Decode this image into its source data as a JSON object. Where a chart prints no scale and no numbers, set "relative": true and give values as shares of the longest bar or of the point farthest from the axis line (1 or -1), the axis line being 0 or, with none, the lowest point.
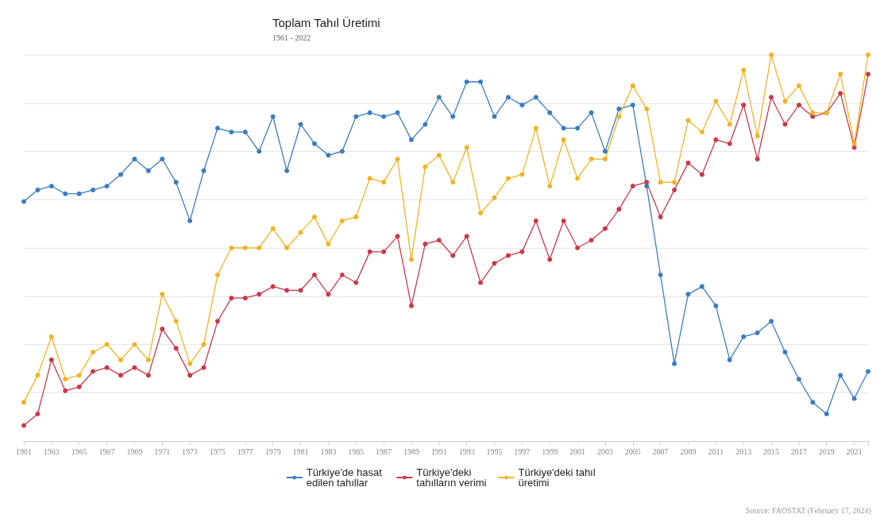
{
  "chart_data": {
    "type": "line",
    "title": "Toplam Tahıl Üretimi",
    "subtitle": "1961 - 2022",
    "annotations": [
      "Source: FAOSTAT (February 17, 2024)"
    ],
    "relative": true,
    "grid": "y",
    "legend": "bottom",
    "marker": "circle",
    "line_style": "solid",
    "categories": [
      "1961",
      null,
      "1963",
      null,
      "1965",
      null,
      "1967",
      null,
      "1969",
      null,
      "1971",
      null,
      "1973",
      null,
      "1975",
      null,
      "1977",
      null,
      "1979",
      null,
      "1981",
      null,
      "1983",
      null,
      "1985",
      null,
      "1987",
      null,
      "1989",
      null,
      "1991",
      null,
      "1993",
      null,
      "1995",
      null,
      "1997",
      null,
      "1999",
      null,
      "2001",
      null,
      "2003",
      null,
      "2005",
      null,
      "2007",
      null,
      "2009",
      null,
      "2011",
      null,
      "2013",
      null,
      "2015",
      null,
      "2017",
      null,
      "2019",
      null,
      "2021",
      null
    ],
    "series": [
      {
        "name": "Türkiye'de hasat edilen tahıllar",
        "color": "#3a7dc1",
        "values": [
          0.62,
          0.65,
          0.66,
          0.64,
          0.64,
          0.65,
          0.66,
          0.69,
          0.73,
          0.7,
          0.73,
          0.67,
          0.57,
          0.7,
          0.81,
          0.8,
          0.8,
          0.75,
          0.84,
          0.7,
          0.82,
          0.77,
          0.74,
          0.75,
          0.84,
          0.85,
          0.84,
          0.85,
          0.78,
          0.82,
          0.89,
          0.84,
          0.93,
          0.93,
          0.84,
          0.89,
          0.87,
          0.89,
          0.85,
          0.81,
          0.81,
          0.85,
          0.75,
          0.86,
          0.87,
          0.66,
          0.43,
          0.2,
          0.38,
          0.4,
          0.35,
          0.21,
          0.27,
          0.28,
          0.31,
          0.23,
          0.16,
          0.1,
          0.07,
          0.17,
          0.11,
          0.18
        ]
      },
      {
        "name": "Türkiye'deki tahılların verimi",
        "color": "#c83a4a",
        "values": [
          0.04,
          0.07,
          0.21,
          0.13,
          0.14,
          0.18,
          0.19,
          0.17,
          0.19,
          0.17,
          0.29,
          0.24,
          0.17,
          0.19,
          0.31,
          0.37,
          0.37,
          0.38,
          0.4,
          0.39,
          0.39,
          0.43,
          0.38,
          0.43,
          0.41,
          0.49,
          0.49,
          0.53,
          0.35,
          0.51,
          0.52,
          0.48,
          0.53,
          0.41,
          0.46,
          0.48,
          0.49,
          0.57,
          0.47,
          0.57,
          0.5,
          0.52,
          0.55,
          0.6,
          0.66,
          0.67,
          0.58,
          0.65,
          0.72,
          0.69,
          0.78,
          0.77,
          0.87,
          0.73,
          0.89,
          0.82,
          0.87,
          0.84,
          0.85,
          0.9,
          0.76,
          0.95
        ]
      },
      {
        "name": "Türkiye'deki tahıl üretimi",
        "color": "#f0b323",
        "values": [
          0.1,
          0.17,
          0.27,
          0.16,
          0.17,
          0.23,
          0.25,
          0.21,
          0.25,
          0.21,
          0.38,
          0.31,
          0.2,
          0.25,
          0.43,
          0.5,
          0.5,
          0.5,
          0.55,
          0.5,
          0.54,
          0.58,
          0.51,
          0.57,
          0.58,
          0.68,
          0.67,
          0.73,
          0.47,
          0.71,
          0.74,
          0.67,
          0.76,
          0.59,
          0.63,
          0.68,
          0.69,
          0.81,
          0.66,
          0.78,
          0.68,
          0.73,
          0.73,
          0.84,
          0.92,
          0.86,
          0.67,
          0.67,
          0.83,
          0.8,
          0.88,
          0.82,
          0.96,
          0.79,
          1.0,
          0.88,
          0.92,
          0.85,
          0.85,
          0.95,
          0.77,
          1.0
        ]
      }
    ]
  }
}
